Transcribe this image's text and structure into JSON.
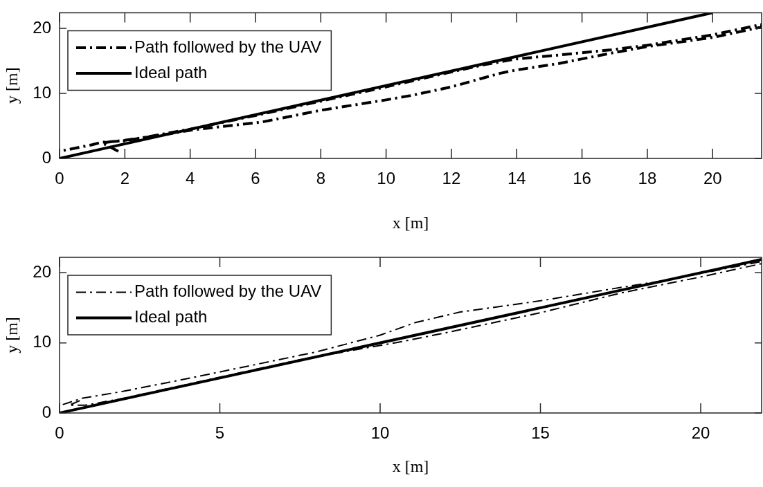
{
  "chart_data": [
    {
      "type": "line",
      "xlabel": "x [m]",
      "ylabel": "y [m]",
      "xlim": [
        0,
        21.5
      ],
      "ylim": [
        0,
        22.4
      ],
      "xticks": [
        0,
        2,
        4,
        6,
        8,
        10,
        12,
        14,
        16,
        18,
        20
      ],
      "yticks": [
        0,
        10,
        20
      ],
      "grid": false,
      "legend": "top left",
      "series": [
        {
          "name": "Path followed by the UAV",
          "color": "#000000",
          "line_style": "dashdot",
          "x": [
            1.8,
            1.3,
            2,
            3,
            4.1,
            6.2,
            8,
            10,
            10.8,
            12,
            13.5,
            14,
            15.3,
            16.9,
            18,
            19,
            20,
            21.5,
            21.5,
            20,
            19,
            18,
            16.9,
            15.3,
            14,
            13,
            12,
            10,
            8,
            6,
            4,
            3,
            2,
            1.3,
            1,
            0
          ],
          "values": [
            1.1,
            2.4,
            2.8,
            3.5,
            4.4,
            5.6,
            7.4,
            9,
            9.7,
            11,
            13.1,
            13.6,
            14.6,
            16.2,
            17.2,
            17.9,
            18.6,
            20.2,
            20.6,
            19,
            18.2,
            17.4,
            16.7,
            15.9,
            15.3,
            14.4,
            13.3,
            11,
            8.8,
            6.6,
            4.5,
            3.6,
            2.7,
            2.5,
            2.1,
            1.1
          ]
        },
        {
          "name": "Ideal path",
          "color": "#000000",
          "line_style": "solid",
          "x": [
            0,
            20
          ],
          "values": [
            0,
            22.4
          ]
        }
      ]
    },
    {
      "type": "line",
      "xlabel": "x [m]",
      "ylabel": "y [m]",
      "xlim": [
        0,
        21.9
      ],
      "ylim": [
        0,
        22.2
      ],
      "xticks": [
        0,
        5,
        10,
        15,
        20
      ],
      "yticks": [
        0,
        10,
        20
      ],
      "grid": false,
      "legend": "top left",
      "series": [
        {
          "name": "Path followed by the UAV",
          "color": "#000000",
          "line_style": "dashdot",
          "x": [
            0.1,
            0.7,
            2,
            4.2,
            6,
            8,
            10,
            11.1,
            12.5,
            15,
            17.5,
            19,
            21.9,
            21.9,
            20,
            17.5,
            15,
            12,
            10.7,
            7.5,
            5,
            2,
            0.8,
            0.3,
            0.7
          ],
          "values": [
            1.2,
            2.1,
            3.1,
            5.1,
            6.8,
            8.7,
            11.1,
            12.9,
            14.4,
            16,
            17.9,
            19,
            21.6,
            21.3,
            19.4,
            17.1,
            14.3,
            11.4,
            10.2,
            7.6,
            5.1,
            2.1,
            1.1,
            1.1,
            1.9
          ]
        },
        {
          "name": "Ideal path",
          "color": "#000000",
          "line_style": "solid",
          "x": [
            0,
            21.9
          ],
          "values": [
            0,
            21.9
          ]
        }
      ]
    }
  ]
}
